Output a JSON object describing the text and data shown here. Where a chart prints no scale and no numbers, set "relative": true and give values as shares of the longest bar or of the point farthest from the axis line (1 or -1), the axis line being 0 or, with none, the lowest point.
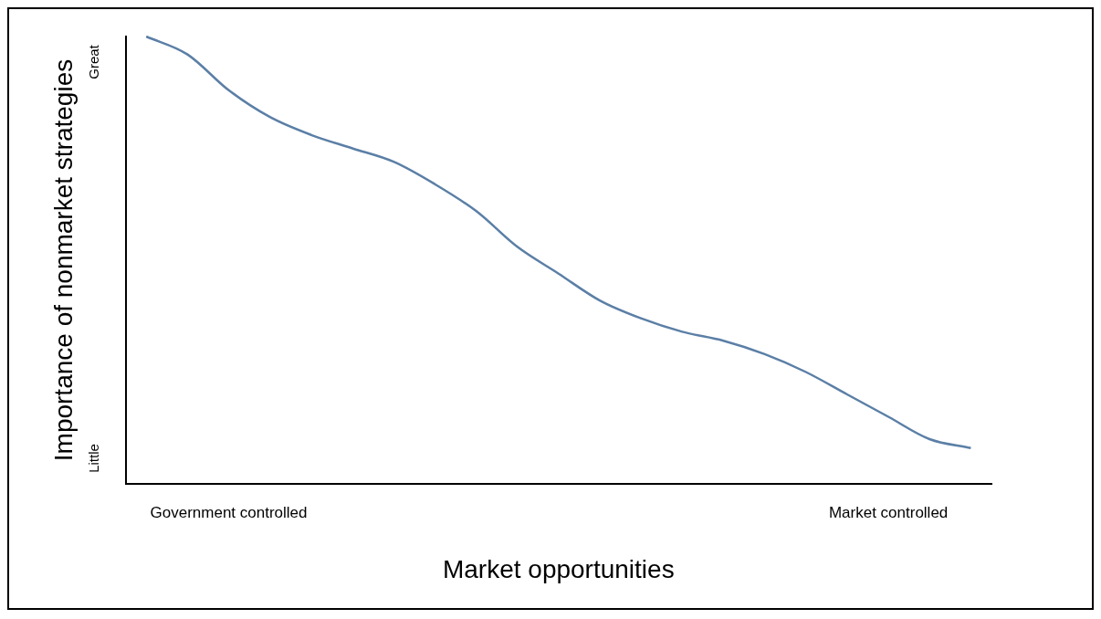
{
  "chart_data": {
    "type": "line",
    "xlabel": "Market opportunities",
    "ylabel": "Importance of nonmarket strategies",
    "relative": true,
    "categories": [
      null,
      null,
      "Government controlled",
      null,
      null,
      null,
      null,
      null,
      null,
      null,
      null,
      null,
      null,
      null,
      null,
      null,
      null,
      null,
      "Market controlled",
      null,
      null
    ],
    "series": [
      {
        "color": "#5b7fa6",
        "values": [
          1.0,
          0.96,
          0.88,
          0.82,
          0.78,
          0.75,
          0.72,
          0.67,
          0.61,
          0.53,
          0.47,
          0.41,
          0.37,
          0.34,
          0.32,
          0.29,
          0.25,
          0.2,
          0.15,
          0.1,
          0.08
        ]
      }
    ],
    "annotations": [
      "Great",
      "Little"
    ],
    "grid": false,
    "legend": false,
    "marker": "none",
    "line_style": "solid"
  }
}
